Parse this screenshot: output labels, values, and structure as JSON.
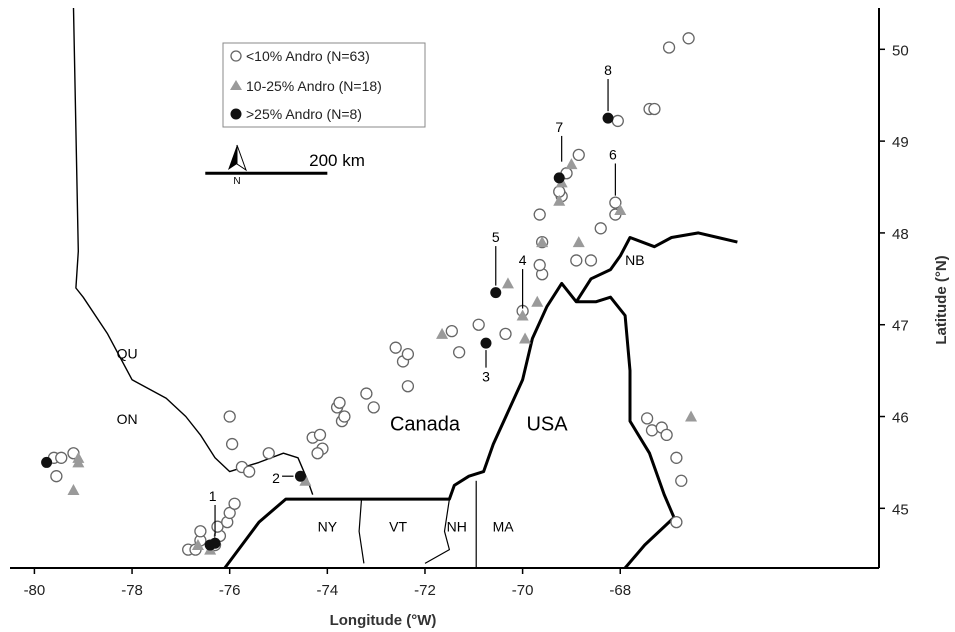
{
  "chart_data": {
    "type": "scatter",
    "xlabel": "Longitude (°W)",
    "ylabel": "Latitude (°N)",
    "xlim": [
      -80.5,
      -62.7
    ],
    "ylim": [
      44.35,
      50.45
    ],
    "x_ticks": [
      -80,
      -78,
      -76,
      -74,
      -72,
      -70,
      -68
    ],
    "y_ticks": [
      45,
      46,
      47,
      48,
      49,
      50
    ],
    "grid": false,
    "legend": "top-left",
    "colors": {
      "low": "#ffffff",
      "low_stroke": "#666666",
      "mid": "#9a9a9a",
      "high": "#111111",
      "border": "#000000"
    },
    "series": [
      {
        "name": "<10% Andro (N=63)",
        "marker": "circle-open",
        "points": [
          [
            -79.6,
            45.55
          ],
          [
            -79.45,
            45.55
          ],
          [
            -79.2,
            45.6
          ],
          [
            -79.55,
            45.35
          ],
          [
            -76.85,
            44.55
          ],
          [
            -76.7,
            44.55
          ],
          [
            -76.6,
            44.65
          ],
          [
            -76.6,
            44.75
          ],
          [
            -76.3,
            44.6
          ],
          [
            -76.2,
            44.7
          ],
          [
            -76.25,
            44.8
          ],
          [
            -76.05,
            44.85
          ],
          [
            -76.0,
            44.95
          ],
          [
            -75.9,
            45.05
          ],
          [
            -76.0,
            46.0
          ],
          [
            -75.95,
            45.7
          ],
          [
            -75.75,
            45.45
          ],
          [
            -75.6,
            45.4
          ],
          [
            -75.2,
            45.6
          ],
          [
            -74.3,
            45.77
          ],
          [
            -74.15,
            45.8
          ],
          [
            -74.1,
            45.65
          ],
          [
            -74.2,
            45.6
          ],
          [
            -73.8,
            46.1
          ],
          [
            -73.75,
            46.15
          ],
          [
            -73.7,
            45.95
          ],
          [
            -73.65,
            46.0
          ],
          [
            -73.2,
            46.25
          ],
          [
            -73.05,
            46.1
          ],
          [
            -72.6,
            46.75
          ],
          [
            -72.45,
            46.6
          ],
          [
            -72.35,
            46.68
          ],
          [
            -72.35,
            46.33
          ],
          [
            -71.45,
            46.93
          ],
          [
            -71.3,
            46.7
          ],
          [
            -70.9,
            47.0
          ],
          [
            -70.35,
            46.9
          ],
          [
            -70.0,
            47.15
          ],
          [
            -69.6,
            47.55
          ],
          [
            -69.65,
            47.65
          ],
          [
            -69.6,
            47.9
          ],
          [
            -69.65,
            48.2
          ],
          [
            -69.2,
            48.4
          ],
          [
            -69.25,
            48.45
          ],
          [
            -69.1,
            48.65
          ],
          [
            -68.85,
            48.85
          ],
          [
            -68.9,
            47.7
          ],
          [
            -68.6,
            47.7
          ],
          [
            -68.4,
            48.05
          ],
          [
            -68.1,
            48.2
          ],
          [
            -68.1,
            48.33
          ],
          [
            -68.05,
            49.22
          ],
          [
            -67.4,
            49.35
          ],
          [
            -67.3,
            49.35
          ],
          [
            -67.0,
            50.02
          ],
          [
            -66.6,
            50.12
          ],
          [
            -67.45,
            45.98
          ],
          [
            -67.35,
            45.85
          ],
          [
            -67.15,
            45.88
          ],
          [
            -67.05,
            45.8
          ],
          [
            -66.85,
            45.55
          ],
          [
            -66.75,
            45.3
          ],
          [
            -66.85,
            44.85
          ]
        ]
      },
      {
        "name": "10-25% Andro (N=18)",
        "marker": "triangle",
        "points": [
          [
            -79.1,
            45.5
          ],
          [
            -79.2,
            45.2
          ],
          [
            -76.65,
            44.6
          ],
          [
            -76.4,
            44.55
          ],
          [
            -74.45,
            45.3
          ],
          [
            -71.65,
            46.9
          ],
          [
            -70.3,
            47.45
          ],
          [
            -70.0,
            47.1
          ],
          [
            -69.95,
            46.85
          ],
          [
            -69.7,
            47.25
          ],
          [
            -69.6,
            47.9
          ],
          [
            -69.25,
            48.35
          ],
          [
            -69.2,
            48.55
          ],
          [
            -69.0,
            48.75
          ],
          [
            -68.85,
            47.9
          ],
          [
            -68.0,
            48.25
          ],
          [
            -66.55,
            46.0
          ],
          [
            -79.1,
            45.55
          ]
        ]
      },
      {
        "name": ">25% Andro (N=8)",
        "marker": "circle-filled",
        "points": [
          [
            -79.75,
            45.5
          ],
          [
            -76.4,
            44.6
          ],
          [
            -76.3,
            44.62
          ],
          [
            -74.55,
            45.35
          ],
          [
            -70.75,
            46.8
          ],
          [
            -70.55,
            47.35
          ],
          [
            -69.25,
            48.6
          ],
          [
            -68.25,
            49.25
          ]
        ]
      }
    ],
    "site_labels": [
      {
        "text": "1",
        "x": -76.3,
        "y": 44.62,
        "at_x": -76.35,
        "at_y": 45.08
      },
      {
        "text": "2",
        "x": -74.55,
        "y": 45.35,
        "at_x": -75.05,
        "at_y": 45.33
      },
      {
        "text": "3",
        "x": -70.75,
        "y": 46.8,
        "at_x": -70.75,
        "at_y": 46.38
      },
      {
        "text": "4",
        "x": -70.0,
        "y": 47.1,
        "at_x": -70.0,
        "at_y": 47.65
      },
      {
        "text": "5",
        "x": -70.55,
        "y": 47.35,
        "at_x": -70.55,
        "at_y": 47.9
      },
      {
        "text": "6",
        "x": -68.1,
        "y": 48.33,
        "at_x": -68.15,
        "at_y": 48.8
      },
      {
        "text": "7",
        "x": -69.2,
        "y": 48.7,
        "at_x": -69.25,
        "at_y": 49.1
      },
      {
        "text": "8",
        "x": -68.25,
        "y": 49.25,
        "at_x": -68.25,
        "at_y": 49.72
      }
    ],
    "region_labels": [
      {
        "text": "QU",
        "x": -78.1,
        "y": 46.63
      },
      {
        "text": "ON",
        "x": -78.1,
        "y": 45.92
      },
      {
        "text": "Canada",
        "x": -72.0,
        "y": 45.85
      },
      {
        "text": "USA",
        "x": -69.5,
        "y": 45.85
      },
      {
        "text": "NB",
        "x": -67.7,
        "y": 47.65
      },
      {
        "text": "NY",
        "x": -74.0,
        "y": 44.75
      },
      {
        "text": "VT",
        "x": -72.55,
        "y": 44.75
      },
      {
        "text": "NH",
        "x": -71.35,
        "y": 44.75
      },
      {
        "text": "MA",
        "x": -70.4,
        "y": 44.75
      }
    ],
    "scale_bar": {
      "label": "200 km",
      "x1": -76.5,
      "x2": -74.0,
      "y": 48.65
    },
    "north_arrow": {
      "label": "N",
      "x": -76.9,
      "y": 48.85
    },
    "borders": [
      [
        [
          -79.2,
          50.45
        ],
        [
          -79.1,
          47.8
        ],
        [
          -79.15,
          47.4
        ],
        [
          -79.0,
          47.3
        ],
        [
          -78.5,
          46.9
        ],
        [
          -78.0,
          46.4
        ],
        [
          -77.3,
          46.2
        ],
        [
          -76.9,
          46.0
        ],
        [
          -76.6,
          45.8
        ],
        [
          -76.3,
          45.55
        ],
        [
          -76.0,
          45.4
        ],
        [
          -75.4,
          45.5
        ],
        [
          -74.9,
          45.6
        ],
        [
          -74.6,
          45.55
        ],
        [
          -74.4,
          45.3
        ],
        [
          -74.3,
          45.15
        ]
      ],
      [
        [
          -76.1,
          44.35
        ],
        [
          -75.4,
          44.85
        ],
        [
          -74.85,
          45.1
        ],
        [
          -73.2,
          45.1
        ],
        [
          -72.0,
          45.1
        ],
        [
          -71.5,
          45.1
        ],
        [
          -71.4,
          45.25
        ],
        [
          -71.1,
          45.35
        ],
        [
          -70.8,
          45.4
        ],
        [
          -70.6,
          45.7
        ],
        [
          -70.3,
          46.05
        ],
        [
          -70.0,
          46.4
        ],
        [
          -69.8,
          46.85
        ],
        [
          -69.5,
          47.2
        ],
        [
          -69.2,
          47.45
        ],
        [
          -68.9,
          47.25
        ],
        [
          -68.5,
          47.25
        ],
        [
          -68.2,
          47.3
        ],
        [
          -67.9,
          47.1
        ],
        [
          -67.8,
          46.5
        ],
        [
          -67.8,
          45.95
        ],
        [
          -67.4,
          45.6
        ],
        [
          -67.1,
          45.15
        ],
        [
          -66.9,
          44.9
        ],
        [
          -67.5,
          44.6
        ],
        [
          -67.9,
          44.35
        ]
      ],
      [
        [
          -68.9,
          47.25
        ],
        [
          -68.6,
          47.5
        ],
        [
          -68.2,
          47.6
        ],
        [
          -68.0,
          47.75
        ],
        [
          -67.8,
          47.95
        ],
        [
          -67.3,
          47.85
        ],
        [
          -66.95,
          47.95
        ],
        [
          -66.4,
          48.0
        ],
        [
          -66.0,
          47.95
        ],
        [
          -65.6,
          47.9
        ]
      ],
      [
        [
          -73.3,
          45.1
        ],
        [
          -73.35,
          44.75
        ],
        [
          -73.25,
          44.4
        ]
      ],
      [
        [
          -71.5,
          45.1
        ],
        [
          -71.6,
          44.75
        ],
        [
          -71.5,
          44.55
        ],
        [
          -72.0,
          44.4
        ]
      ],
      [
        [
          -70.95,
          45.3
        ],
        [
          -70.95,
          44.35
        ]
      ]
    ]
  }
}
